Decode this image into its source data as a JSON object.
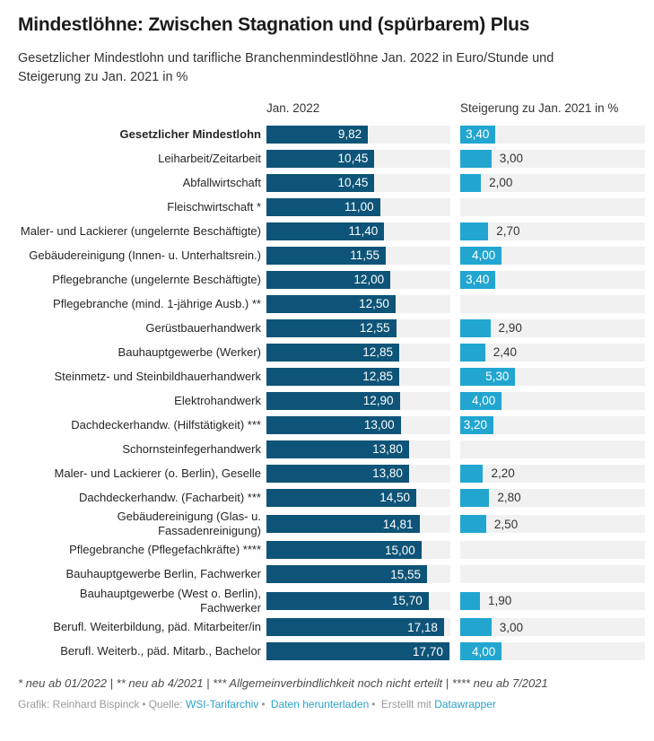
{
  "header": {
    "title": "Mindestlöhne: Zwischen Stagnation und (spürbarem) Plus",
    "subtitle": "Gesetzlicher Mindestlohn und tarifliche Branchenmindestlöhne Jan. 2022 in Euro/Stunde und Steigerung zu Jan. 2021 in %"
  },
  "chart_data": {
    "type": "bar",
    "title": "Mindestlöhne: Zwischen Stagnation und (spürbarem) Plus",
    "subtitle": "Gesetzlicher Mindestlohn und tarifliche Branchenmindestlöhne Jan. 2022 in Euro/Stunde und Steigerung zu Jan. 2021 in %",
    "column_headers": [
      "Jan. 2022",
      "Steigerung zu Jan. 2021 in %"
    ],
    "axis_max": 17.8,
    "units": {
      "wage": "Euro/Stunde",
      "increase": "%"
    },
    "inside_label_threshold": 3.2,
    "rows": [
      {
        "label": "Gesetzlicher Mindestlohn",
        "wage": 9.82,
        "wage_label": "9,82",
        "increase": 3.4,
        "increase_label": "3,40",
        "bold": true
      },
      {
        "label": "Leiharbeit/Zeitarbeit",
        "wage": 10.45,
        "wage_label": "10,45",
        "increase": 3.0,
        "increase_label": "3,00",
        "bold": false
      },
      {
        "label": "Abfallwirtschaft",
        "wage": 10.45,
        "wage_label": "10,45",
        "increase": 2.0,
        "increase_label": "2,00",
        "bold": false
      },
      {
        "label": "Fleischwirtschaft *",
        "wage": 11.0,
        "wage_label": "11,00",
        "increase": null,
        "increase_label": "",
        "bold": false
      },
      {
        "label": "Maler- und Lackierer (ungelernte Beschäftigte)",
        "wage": 11.4,
        "wage_label": "11,40",
        "increase": 2.7,
        "increase_label": "2,70",
        "bold": false
      },
      {
        "label": "Gebäudereinigung (Innen- u. Unterhaltsrein.)",
        "wage": 11.55,
        "wage_label": "11,55",
        "increase": 4.0,
        "increase_label": "4,00",
        "bold": false
      },
      {
        "label": "Pflegebranche (ungelernte Beschäftigte)",
        "wage": 12.0,
        "wage_label": "12,00",
        "increase": 3.4,
        "increase_label": "3,40",
        "bold": false
      },
      {
        "label": "Pflegebranche (mind. 1-jährige Ausb.) **",
        "wage": 12.5,
        "wage_label": "12,50",
        "increase": null,
        "increase_label": "",
        "bold": false
      },
      {
        "label": "Gerüstbauerhandwerk",
        "wage": 12.55,
        "wage_label": "12,55",
        "increase": 2.9,
        "increase_label": "2,90",
        "bold": false
      },
      {
        "label": "Bauhauptgewerbe (Werker)",
        "wage": 12.85,
        "wage_label": "12,85",
        "increase": 2.4,
        "increase_label": "2,40",
        "bold": false
      },
      {
        "label": "Steinmetz- und Steinbildhauerhandwerk",
        "wage": 12.85,
        "wage_label": "12,85",
        "increase": 5.3,
        "increase_label": "5,30",
        "bold": false
      },
      {
        "label": "Elektrohandwerk",
        "wage": 12.9,
        "wage_label": "12,90",
        "increase": 4.0,
        "increase_label": "4,00",
        "bold": false
      },
      {
        "label": "Dachdeckerhandw. (Hilfstätigkeit) ***",
        "wage": 13.0,
        "wage_label": "13,00",
        "increase": 3.2,
        "increase_label": "3,20",
        "bold": false
      },
      {
        "label": "Schornsteinfegerhandwerk",
        "wage": 13.8,
        "wage_label": "13,80",
        "increase": null,
        "increase_label": "",
        "bold": false
      },
      {
        "label": "Maler- und Lackierer (o. Berlin), Geselle",
        "wage": 13.8,
        "wage_label": "13,80",
        "increase": 2.2,
        "increase_label": "2,20",
        "bold": false
      },
      {
        "label": "Dachdeckerhandw. (Facharbeit) ***",
        "wage": 14.5,
        "wage_label": "14,50",
        "increase": 2.8,
        "increase_label": "2,80",
        "bold": false
      },
      {
        "label": "Gebäudereinigung (Glas- u. Fassadenreinigung)",
        "wage": 14.81,
        "wage_label": "14,81",
        "increase": 2.5,
        "increase_label": "2,50",
        "bold": false
      },
      {
        "label": "Pflegebranche (Pflegefachkräfte) ****",
        "wage": 15.0,
        "wage_label": "15,00",
        "increase": null,
        "increase_label": "",
        "bold": false
      },
      {
        "label": "Bauhauptgewerbe Berlin, Fachwerker",
        "wage": 15.55,
        "wage_label": "15,55",
        "increase": null,
        "increase_label": "",
        "bold": false
      },
      {
        "label": "Bauhauptgewerbe (West o. Berlin), Fachwerker",
        "wage": 15.7,
        "wage_label": "15,70",
        "increase": 1.9,
        "increase_label": "1,90",
        "bold": false
      },
      {
        "label": "Berufl. Weiterbildung, päd. Mitarbeiter/in",
        "wage": 17.18,
        "wage_label": "17,18",
        "increase": 3.0,
        "increase_label": "3,00",
        "bold": false
      },
      {
        "label": "Berufl. Weiterb., päd. Mitarb., Bachelor",
        "wage": 17.7,
        "wage_label": "17,70",
        "increase": 4.0,
        "increase_label": "4,00",
        "bold": false
      }
    ]
  },
  "colors": {
    "bar_dark": "#0e5478",
    "bar_light": "#22a6d0",
    "track": "#f1f1f1",
    "link": "#2aa2c9"
  },
  "footnote": "* neu ab 01/2022 | ** neu ab 4/2021 | *** Allgemeinverbindlichkeit noch nicht erteilt | **** neu ab 7/2021",
  "footer": {
    "credit": "Grafik: Reinhard Bispinck",
    "separator": "•",
    "source_label": "Quelle:",
    "source_link": "WSI-Tarifarchiv",
    "download_link": "Daten herunterladen",
    "made_with": "Erstellt mit",
    "tool_link": "Datawrapper"
  }
}
